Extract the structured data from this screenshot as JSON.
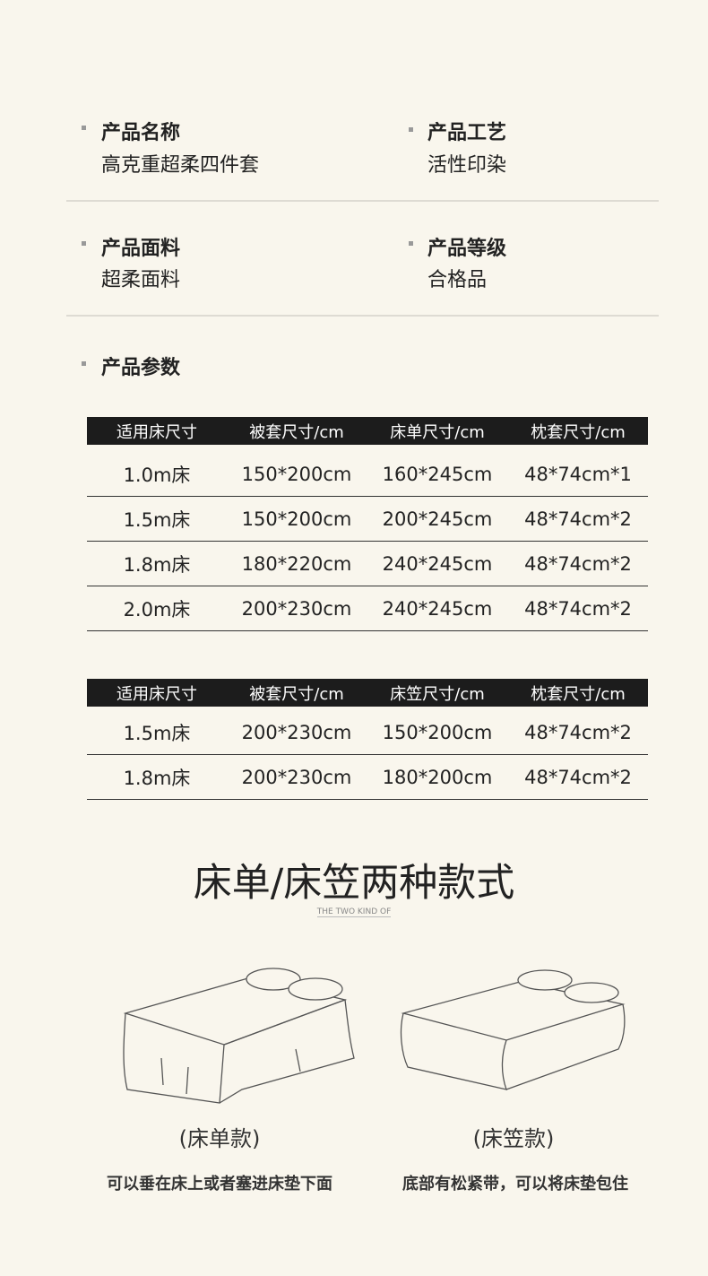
{
  "info": [
    {
      "label": "产品名称",
      "value": "高克重超柔四件套"
    },
    {
      "label": "产品工艺",
      "value": "活性印染"
    },
    {
      "label": "产品面料",
      "value": "超柔面料"
    },
    {
      "label": "产品等级",
      "value": "合格品"
    }
  ],
  "params_label": "产品参数",
  "table1": {
    "headers": [
      "适用床尺寸",
      "被套尺寸/cm",
      "床单尺寸/cm",
      "枕套尺寸/cm"
    ],
    "rows": [
      [
        "1.0m床",
        "150*200cm",
        "160*245cm",
        "48*74cm*1"
      ],
      [
        "1.5m床",
        "150*200cm",
        "200*245cm",
        "48*74cm*2"
      ],
      [
        "1.8m床",
        "180*220cm",
        "240*245cm",
        "48*74cm*2"
      ],
      [
        "2.0m床",
        "200*230cm",
        "240*245cm",
        "48*74cm*2"
      ]
    ]
  },
  "table2": {
    "headers": [
      "适用床尺寸",
      "被套尺寸/cm",
      "床笠尺寸/cm",
      "枕套尺寸/cm"
    ],
    "rows": [
      [
        "1.5m床",
        "200*230cm",
        "150*200cm",
        "48*74cm*2"
      ],
      [
        "1.8m床",
        "200*230cm",
        "180*200cm",
        "48*74cm*2"
      ]
    ]
  },
  "styles": {
    "title": "床单/床笠两种款式",
    "subtitle": "THE TWO KIND OF",
    "sheet": {
      "caption": "(床单款)",
      "desc": "可以垂在床上或者塞进床垫下面"
    },
    "fitted": {
      "caption": "(床笠款)",
      "desc": "底部有松紧带，可以将床垫包住"
    }
  }
}
